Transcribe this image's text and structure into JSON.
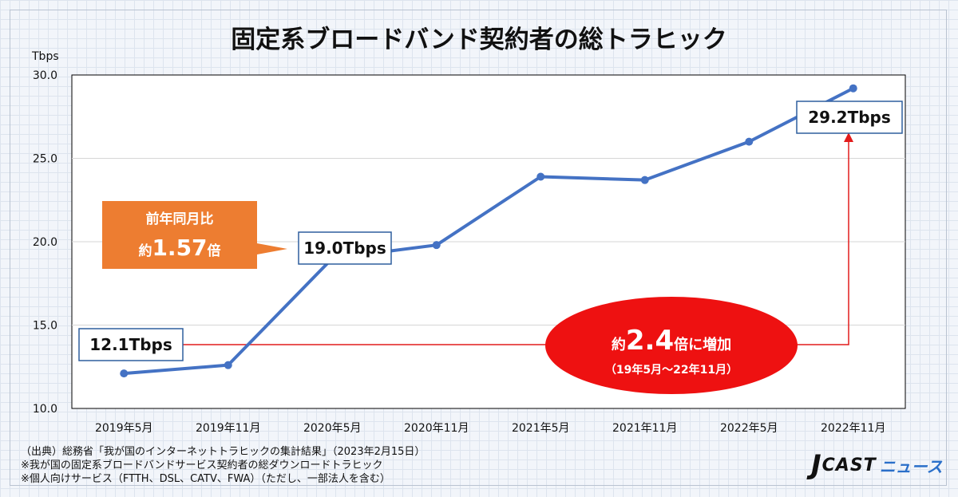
{
  "chart_data": {
    "type": "line",
    "title": "固定系ブロードバンド契約者の総トラヒック",
    "ylabel": "Tbps",
    "ylim": [
      10,
      30
    ],
    "yticks": [
      "10.0",
      "15.0",
      "20.0",
      "25.0",
      "30.0"
    ],
    "categories": [
      "2019年5月",
      "2019年11月",
      "2020年5月",
      "2020年11月",
      "2021年5月",
      "2021年11月",
      "2022年5月",
      "2022年11月"
    ],
    "series": [
      {
        "values": [
          12.1,
          12.6,
          19.0,
          19.8,
          23.9,
          23.7,
          26.0,
          29.2
        ],
        "color": "#4472c4"
      }
    ],
    "grid": true,
    "legend": "none",
    "annotations": {
      "label_start": "12.1Tbps",
      "label_mid": "19.0Tbps",
      "label_end": "29.2Tbps",
      "yoy_line1": "前年同月比",
      "yoy_prefix": "約",
      "yoy_value": "1.57",
      "yoy_suffix": "倍",
      "growth_prefix": "約",
      "growth_value": "2.4",
      "growth_suffix": "倍に増加",
      "growth_period": "（19年5月～22年11月）"
    },
    "colors": {
      "line": "#4472c4",
      "callout": "#ed7d31",
      "ellipse": "#ee1111",
      "arrow": "#e21b1b"
    }
  },
  "footnotes": [
    "（出典）総務省「我が国のインターネットトラヒックの集計結果」（2023年2月15日）",
    "※我が国の固定系ブロードバンドサービス契約者の総ダウンロードトラヒック",
    "※個人向けサービス（FTTH、DSL、CATV、FWA）（ただし、一部法人を含む）"
  ],
  "logo": {
    "j": "J",
    "cast": "CAST",
    "news": "ニュース"
  }
}
